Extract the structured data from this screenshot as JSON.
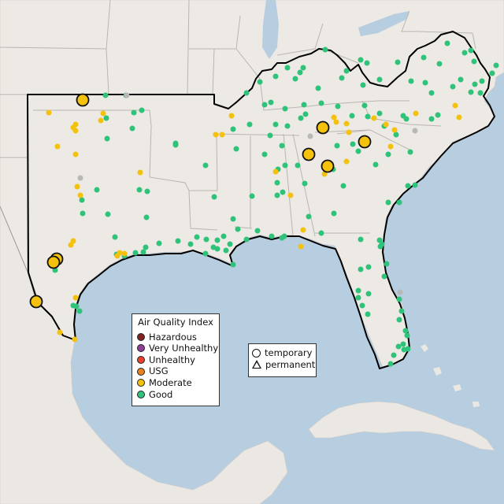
{
  "legend": {
    "title": "Air Quality Index",
    "items": [
      {
        "label": "Hazardous",
        "color": "#7e2321",
        "icon": "hazardous-swatch"
      },
      {
        "label": "Very Unhealthy",
        "color": "#8f3f97",
        "icon": "very-unhealthy-swatch"
      },
      {
        "label": "Unhealthy",
        "color": "#e8412d",
        "icon": "unhealthy-swatch"
      },
      {
        "label": "USG",
        "color": "#e8801e",
        "icon": "usg-swatch"
      },
      {
        "label": "Moderate",
        "color": "#f4c20d",
        "icon": "moderate-swatch"
      },
      {
        "label": "Good",
        "color": "#2fc37a",
        "icon": "good-swatch"
      }
    ]
  },
  "type_legend": {
    "temporary": "temporary",
    "permanent": "permanent"
  },
  "colors": {
    "ocean": "#b7cde0",
    "land": "#ede9e4",
    "state_border": "#bdbdbd",
    "region_outline": "#000000",
    "good": "#2fc37a",
    "moderate": "#f4c20d",
    "no_data": "#b8b8b8"
  }
}
